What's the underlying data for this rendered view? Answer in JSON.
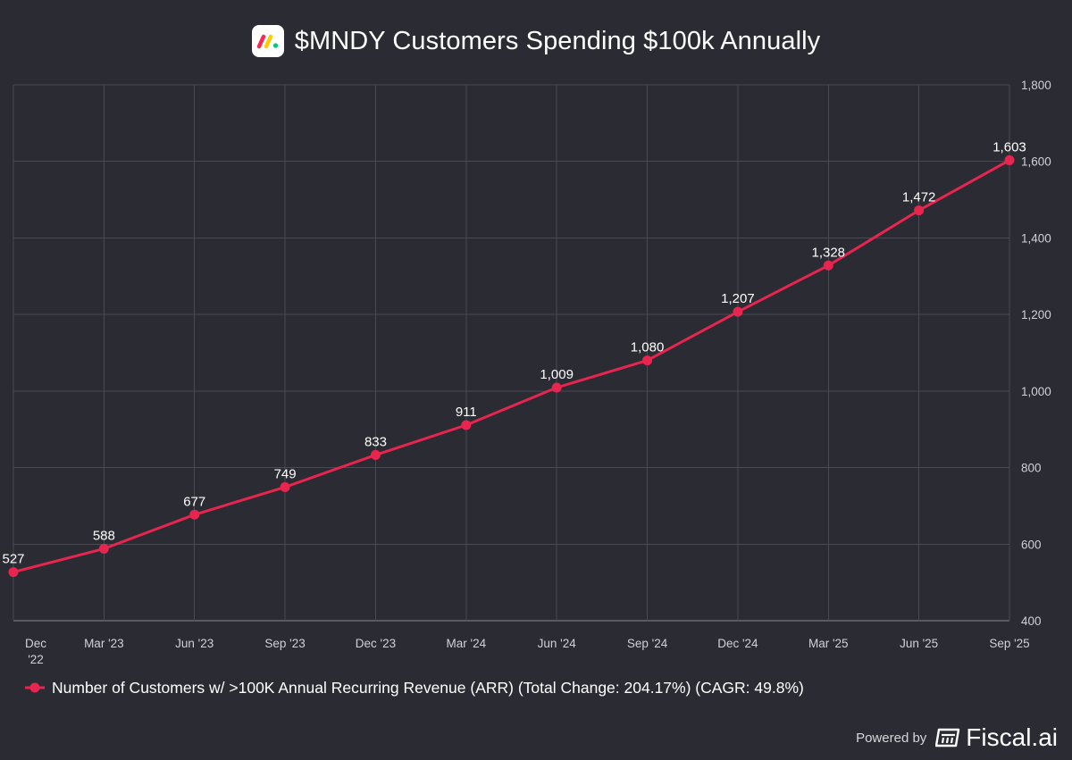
{
  "header": {
    "title": "$MNDY Customers Spending $100k Annually",
    "logo_icon": "monday-logo-icon",
    "logo_colors": [
      "#f62b54",
      "#ffcc00",
      "#00ca72"
    ]
  },
  "chart_data": {
    "type": "line",
    "title": "$MNDY Customers Spending $100k Annually",
    "categories": [
      "Dec '22",
      "Mar '23",
      "Jun '23",
      "Sep '23",
      "Dec '23",
      "Mar '24",
      "Jun '24",
      "Sep '24",
      "Dec '24",
      "Mar '25",
      "Jun '25",
      "Sep '25"
    ],
    "series": [
      {
        "name": "Number of Customers w/ >100K Annual Recurring Revenue (ARR) (Total Change: 204.17%) (CAGR: 49.8%)",
        "values": [
          527,
          588,
          677,
          749,
          833,
          911,
          1009,
          1080,
          1207,
          1328,
          1472,
          1603
        ],
        "labels": [
          "527",
          "588",
          "677",
          "749",
          "833",
          "911",
          "1,009",
          "1,080",
          "1,207",
          "1,328",
          "1,472",
          "1,603"
        ],
        "color": "#e8254e"
      }
    ],
    "y_ticks": [
      400,
      600,
      800,
      1000,
      1200,
      1400,
      1600,
      1800
    ],
    "y_tick_labels": [
      "400",
      "600",
      "800",
      "1,000",
      "1,200",
      "1,400",
      "1,600",
      "1,800"
    ],
    "ylim": [
      400,
      1800
    ],
    "y_axis_side": "right",
    "grid": true,
    "legend_position": "bottom-left"
  },
  "footer": {
    "powered_by": "Powered by",
    "brand": "Fiscal.ai",
    "brand_icon": "fiscal-ai-logo-icon"
  },
  "colors": {
    "background": "#2b2b33",
    "grid": "#4a4a54",
    "axis_text": "#d0d0d6",
    "series": "#e8254e"
  }
}
